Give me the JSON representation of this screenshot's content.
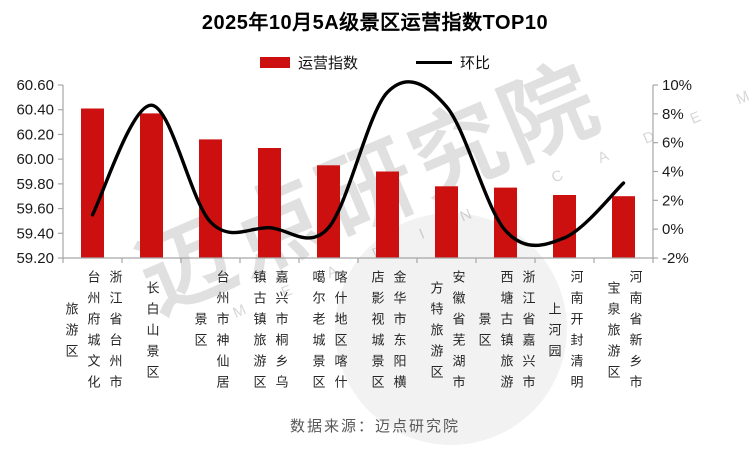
{
  "title": "2025年10月5A级景区运营指数TOP10",
  "legend": {
    "bars": "运营指数",
    "line": "环比"
  },
  "source": "数据来源：迈点研究院",
  "watermark": {
    "text": "迈点研究院",
    "subtext": "M E A D I N  A C A D E M Y"
  },
  "colors": {
    "bar": "#cc1010",
    "line": "#000000",
    "axis": "#a6a6a6",
    "tick_label": "#1a1a1a",
    "x_label": "#262626",
    "source_text": "#595959"
  },
  "chart_data": {
    "type": "bar",
    "subtype": "bar+line combo, line on secondary axis, smooth spline",
    "title": "2025年10月5A级景区运营指数TOP10",
    "legend_position": "top",
    "grid": "off",
    "categories": [
      "浙江省台州市台州府城文化旅游区",
      "长白山景区",
      "台州市神仙居景区",
      "嘉兴市桐乡乌镇古镇旅游区",
      "喀什地区喀什噶尔老城景区",
      "金华市东阳横店影视城景区",
      "安徽省芜湖市方特旅游区",
      "浙江省嘉兴市西塘古镇旅游景区",
      "河南开封清明上河园",
      "河南省新乡市宝泉旅游区"
    ],
    "categories_wrapped": [
      "浙江省台州市\n台州府城文化\n旅游区",
      "长白山景区",
      "台州市神仙居\n景区",
      "嘉兴市桐乡乌\n镇古镇旅游区",
      "喀什地区喀什\n噶尔老城景区",
      "金华市东阳横\n店影视城景区",
      "安徽省芜湖市\n方特旅游区",
      "浙江省嘉兴市\n西塘古镇旅游\n景区",
      "河南开封清明\n上河园",
      "河南省新乡市\n宝泉旅游区"
    ],
    "series": [
      {
        "name": "运营指数",
        "type": "bar",
        "axis": "left",
        "values": [
          60.41,
          60.37,
          60.16,
          60.09,
          59.95,
          59.9,
          59.78,
          59.77,
          59.71,
          59.7
        ]
      },
      {
        "name": "环比",
        "type": "line",
        "axis": "right",
        "unit": "%",
        "values": [
          1.0,
          8.6,
          0.5,
          0.1,
          0.1,
          9.5,
          8.5,
          -0.1,
          -0.6,
          3.2
        ]
      }
    ],
    "left_axis": {
      "min": 59.2,
      "max": 60.6,
      "step": 0.2,
      "ticks": [
        "60.60",
        "60.40",
        "60.20",
        "60.00",
        "59.80",
        "59.60",
        "59.40",
        "59.20"
      ]
    },
    "right_axis": {
      "min": -2,
      "max": 10,
      "step": 2,
      "ticks": [
        "10%",
        "8%",
        "6%",
        "4%",
        "2%",
        "0%",
        "-2%"
      ]
    }
  }
}
